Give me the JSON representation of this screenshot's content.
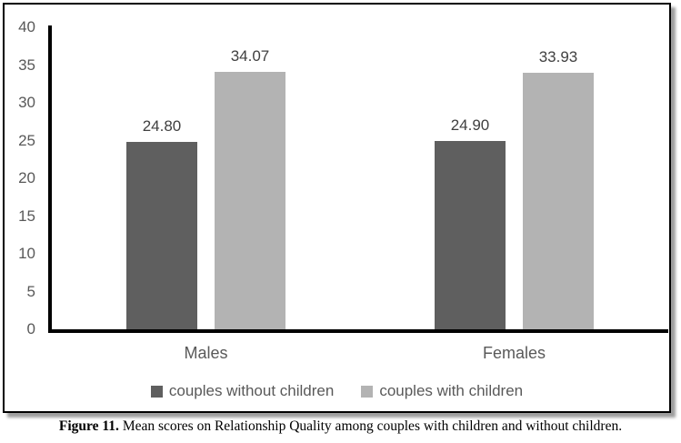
{
  "chart_data": {
    "type": "bar",
    "categories": [
      "Males",
      "Females"
    ],
    "series": [
      {
        "name": "couples without children",
        "color": "#5f5f5f",
        "values": [
          24.8,
          24.9
        ],
        "value_labels": [
          "24.80",
          "24.90"
        ]
      },
      {
        "name": "couples with children",
        "color": "#b3b3b3",
        "values": [
          34.07,
          33.93
        ],
        "value_labels": [
          "34.07",
          "33.93"
        ]
      }
    ],
    "title": "",
    "xlabel": "",
    "ylabel": "",
    "ylim": [
      0,
      40
    ],
    "yticks": [
      0,
      5,
      10,
      15,
      20,
      25,
      30,
      35,
      40
    ],
    "grid": false,
    "legend_position": "bottom"
  },
  "caption": {
    "prefix": "Figure 11.",
    "text": " Mean scores on Relationship Quality among couples with children and without children."
  },
  "colors": {
    "series_without_children": "#5f5f5f",
    "series_with_children": "#b3b3b3",
    "axis": "#000000",
    "tick_text": "#595959",
    "value_label_text": "#404040",
    "frame_border": "#000000"
  }
}
